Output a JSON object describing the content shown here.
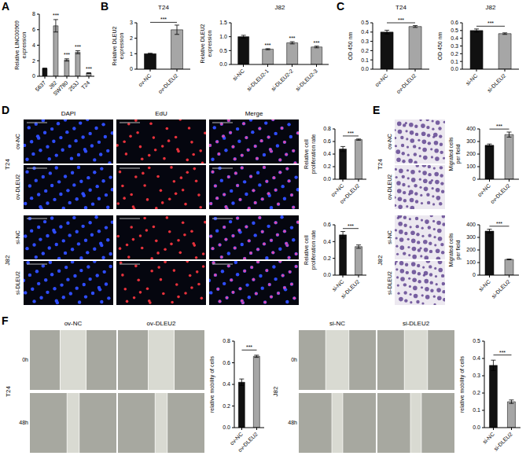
{
  "panel_letters": [
    "A",
    "B",
    "C",
    "D",
    "E",
    "F"
  ],
  "chart_data": [
    {
      "type": "bar",
      "ylabel": "Relative LINC00969 expression",
      "categories": [
        "5637",
        "J82",
        "SW780",
        "253J",
        "T24"
      ],
      "values": [
        1.0,
        6.5,
        2.1,
        3.1,
        0.4
      ],
      "errors": [
        0.05,
        0.8,
        0.15,
        0.2,
        0.05
      ],
      "colors": [
        "#111111",
        "#a6a6a6",
        "#a6a6a6",
        "#a6a6a6",
        "#a6a6a6"
      ],
      "ylim": [
        0,
        8
      ],
      "yticks": [
        0,
        2,
        4,
        6,
        8
      ],
      "annotations": [
        {
          "text": "***",
          "category": "J82"
        },
        {
          "text": "***",
          "category": "SW780"
        },
        {
          "text": "***",
          "category": "253J"
        },
        {
          "text": "***",
          "category": "T24"
        }
      ]
    },
    {
      "type": "bar",
      "title": "T24",
      "ylabel": "Relative DLEU2 expression",
      "categories": [
        "ov-NC",
        "ov-DLEU2"
      ],
      "values": [
        1.0,
        2.55
      ],
      "errors": [
        0.03,
        0.3
      ],
      "colors": [
        "#111111",
        "#a6a6a6"
      ],
      "ylim": [
        0,
        3
      ],
      "yticks": [
        0,
        1,
        2,
        3
      ],
      "annotations": [
        {
          "text": "***",
          "between": [
            "ov-NC",
            "ov-DLEU2"
          ]
        }
      ]
    },
    {
      "type": "bar",
      "title": "J82",
      "ylabel": "Relative DLEU2 expression",
      "categories": [
        "si-NC",
        "si-DLEU2-1",
        "si-DLEU2-2",
        "si-DLEU2-3"
      ],
      "values": [
        1.0,
        0.55,
        0.78,
        0.63
      ],
      "errors": [
        0.05,
        0.02,
        0.04,
        0.03
      ],
      "colors": [
        "#111111",
        "#a6a6a6",
        "#a6a6a6",
        "#a6a6a6"
      ],
      "ylim": [
        0,
        1.5
      ],
      "yticks": [
        {
          "value": 0,
          "label": "0.0"
        },
        0.5,
        {
          "value": 1,
          "label": "1.0"
        },
        1.5
      ],
      "annotations": [
        {
          "text": "***",
          "category": "si-DLEU2-1"
        },
        {
          "text": "***",
          "category": "si-DLEU2-2"
        },
        {
          "text": "***",
          "category": "si-DLEU2-3"
        }
      ]
    },
    {
      "type": "bar",
      "title": "T24",
      "ylabel": "OD 450 nm",
      "categories": [
        "ov-NC",
        "ov-DLEU2"
      ],
      "values": [
        0.4,
        0.46
      ],
      "errors": [
        0.02,
        0.01
      ],
      "colors": [
        "#111111",
        "#a6a6a6"
      ],
      "ylim": [
        0,
        0.5
      ],
      "yticks": [
        {
          "value": 0,
          "label": "0.0"
        },
        0.1,
        0.2,
        0.3,
        0.4,
        0.5
      ],
      "annotations": [
        {
          "text": "***",
          "between": [
            "ov-NC",
            "ov-DLEU2"
          ]
        }
      ]
    },
    {
      "type": "bar",
      "title": "J82",
      "ylabel": "OD 450 nm",
      "categories": [
        "si-NC",
        "si-DLEU2"
      ],
      "values": [
        0.5,
        0.46
      ],
      "errors": [
        0.02,
        0.01
      ],
      "colors": [
        "#111111",
        "#a6a6a6"
      ],
      "ylim": [
        0,
        0.6
      ],
      "yticks": [
        {
          "value": 0,
          "label": "0.0"
        },
        0.1,
        0.2,
        0.3,
        0.4,
        0.5,
        0.6
      ],
      "annotations": [
        {
          "text": "***",
          "between": [
            "si-NC",
            "si-DLEU2"
          ]
        }
      ]
    },
    {
      "type": "bar",
      "ylabel": "Relative cell proliferation rate",
      "categories": [
        "ov-NC",
        "ov-DLEU2"
      ],
      "values": [
        0.48,
        0.63
      ],
      "errors": [
        0.04,
        0.01
      ],
      "colors": [
        "#111111",
        "#a6a6a6"
      ],
      "ylim": [
        0,
        0.8
      ],
      "yticks": [
        {
          "value": 0,
          "label": "0.0"
        },
        0.2,
        0.4,
        0.6,
        0.8
      ],
      "annotations": [
        {
          "text": "***",
          "between": [
            "ov-NC",
            "ov-DLEU2"
          ]
        }
      ]
    },
    {
      "type": "bar",
      "ylabel": "Relative cell proliferation rate",
      "categories": [
        "si-NC",
        "si-DLEU2"
      ],
      "values": [
        0.48,
        0.34
      ],
      "errors": [
        0.04,
        0.02
      ],
      "colors": [
        "#111111",
        "#a6a6a6"
      ],
      "ylim": [
        0,
        0.6
      ],
      "yticks": [
        {
          "value": 0,
          "label": "0.0"
        },
        0.2,
        0.4,
        0.6
      ],
      "annotations": [
        {
          "text": "***",
          "between": [
            "si-NC",
            "si-DLEU2"
          ]
        }
      ]
    },
    {
      "type": "bar",
      "ylabel": "Migrated cells per field",
      "categories": [
        "ov-NC",
        "ov-DLEU2"
      ],
      "values": [
        270,
        355
      ],
      "errors": [
        10,
        20
      ],
      "colors": [
        "#111111",
        "#a6a6a6"
      ],
      "ylim": [
        0,
        400
      ],
      "yticks": [
        0,
        100,
        200,
        300,
        400
      ],
      "annotations": [
        {
          "text": "***",
          "between": [
            "ov-NC",
            "ov-DLEU2"
          ]
        }
      ]
    },
    {
      "type": "bar",
      "ylabel": "Migrated cells per field",
      "categories": [
        "si-NC",
        "si-DLEU2"
      ],
      "values": [
        350,
        125
      ],
      "errors": [
        15,
        3
      ],
      "colors": [
        "#111111",
        "#a6a6a6"
      ],
      "ylim": [
        0,
        400
      ],
      "yticks": [
        0,
        100,
        200,
        300,
        400
      ],
      "annotations": [
        {
          "text": "***",
          "between": [
            "si-NC",
            "si-DLEU2"
          ]
        }
      ]
    },
    {
      "type": "bar",
      "ylabel": "relative mobility of cells",
      "categories": [
        "ov-NC",
        "ov-DLEU2"
      ],
      "values": [
        0.42,
        0.66
      ],
      "errors": [
        0.03,
        0.01
      ],
      "colors": [
        "#111111",
        "#a6a6a6"
      ],
      "ylim": [
        0,
        0.8
      ],
      "yticks": [
        {
          "value": 0,
          "label": "0.0"
        },
        0.2,
        0.4,
        0.6,
        0.8
      ],
      "annotations": [
        {
          "text": "***",
          "between": [
            "ov-NC",
            "ov-DLEU2"
          ]
        }
      ]
    },
    {
      "type": "bar",
      "ylabel": "relative mobility of cells",
      "categories": [
        "si-NC",
        "si-DLEU2"
      ],
      "values": [
        0.36,
        0.15
      ],
      "errors": [
        0.03,
        0.01
      ],
      "colors": [
        "#111111",
        "#a6a6a6"
      ],
      "ylim": [
        0,
        0.5
      ],
      "yticks": [
        {
          "value": 0,
          "label": "0.0"
        },
        0.1,
        0.2,
        0.3,
        0.4,
        0.5
      ],
      "annotations": [
        {
          "text": "***",
          "between": [
            "si-NC",
            "si-DLEU2"
          ]
        }
      ]
    }
  ],
  "fluorescence": {
    "columns": [
      "DAPI",
      "EdU",
      "Merge"
    ],
    "groups": [
      {
        "label": "T24",
        "rows": [
          "ov-NC",
          "ov-DLEU2"
        ]
      },
      {
        "label": "J82",
        "rows": [
          "si-NC",
          "si-DLEU2"
        ]
      }
    ]
  },
  "transwell": {
    "groups": [
      {
        "label": "T24",
        "rows": [
          "ov-NC",
          "ov-DLEU2"
        ]
      },
      {
        "label": "J82",
        "rows": [
          "si-NC",
          "si-DLEU2"
        ]
      }
    ]
  },
  "wound_healing": {
    "blocks": [
      {
        "label": "T24",
        "columns": [
          "ov-NC",
          "ov-DLEU2"
        ],
        "rows": [
          "0h",
          "48h"
        ]
      },
      {
        "label": "J82",
        "columns": [
          "si-NC",
          "si-DLEU2"
        ],
        "rows": [
          "0h",
          "48h"
        ]
      }
    ]
  }
}
